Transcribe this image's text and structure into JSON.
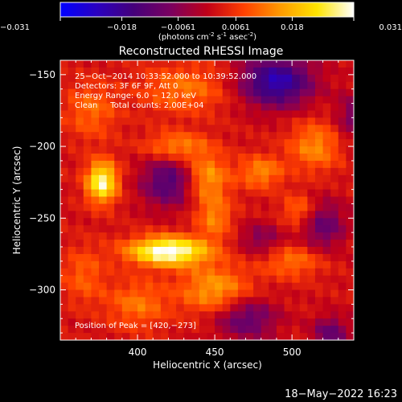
{
  "chart_data": {
    "type": "heatmap",
    "title": "Reconstructed RHESSI Image",
    "xlabel": "Heliocentric X (arcsec)",
    "ylabel": "Heliocentric Y (arcsec)",
    "xlim": [
      350,
      540
    ],
    "ylim": [
      -335,
      -140
    ],
    "x_ticks": [
      400,
      450,
      500
    ],
    "y_ticks": [
      -150,
      -200,
      -250,
      -300
    ],
    "colorbar": {
      "label_html": "(photons cm⁻² s⁻¹ asec⁻²)",
      "label_parts": [
        "(photons cm",
        "-2",
        " s",
        "-1",
        " asec",
        "-2",
        ")"
      ],
      "min": -0.031,
      "max": 0.031,
      "ticks": [
        {
          "value": -0.031,
          "label": "−0.031"
        },
        {
          "value": -0.018,
          "label": "−0.018"
        },
        {
          "value": -0.0061,
          "label": "−0.0061"
        },
        {
          "value": 0.0061,
          "label": "0.0061"
        },
        {
          "value": 0.018,
          "label": "0.018"
        },
        {
          "value": 0.031,
          "label": "0.031"
        }
      ],
      "colors": [
        "#0000ff",
        "#2a00c0",
        "#45007a",
        "#7a0060",
        "#c00018",
        "#ff4000",
        "#ff9a00",
        "#ffe400",
        "#ffffff"
      ]
    },
    "annotations": [
      "25−Oct−2014 10:33:52.000 to 10:39:52.000",
      "Detectors: 3F 6F 9F, Att 0",
      "Energy Range: 6.0 − 12.0 keV",
      "Clean     Total counts: 2.00E+04"
    ],
    "peak_label": "Position of Peak = [420,−273]",
    "peak": [
      420,
      -273
    ],
    "sources": [
      {
        "x": 420,
        "y": -273,
        "value": 0.031,
        "sx": 18,
        "sy": 7
      },
      {
        "x": 377,
        "y": -225,
        "value": 0.027,
        "sx": 7,
        "sy": 10
      },
      {
        "x": 445,
        "y": -222,
        "value": 0.014,
        "sx": 10,
        "sy": 12
      },
      {
        "x": 425,
        "y": -200,
        "value": 0.012,
        "sx": 14,
        "sy": 7
      },
      {
        "x": 450,
        "y": -250,
        "value": 0.011,
        "sx": 8,
        "sy": 10
      },
      {
        "x": 480,
        "y": -218,
        "value": 0.012,
        "sx": 10,
        "sy": 8
      },
      {
        "x": 515,
        "y": -200,
        "value": 0.012,
        "sx": 12,
        "sy": 12
      },
      {
        "x": 505,
        "y": -245,
        "value": 0.01,
        "sx": 8,
        "sy": 8
      },
      {
        "x": 450,
        "y": -300,
        "value": 0.014,
        "sx": 16,
        "sy": 12
      },
      {
        "x": 400,
        "y": -310,
        "value": 0.01,
        "sx": 14,
        "sy": 12
      },
      {
        "x": 500,
        "y": -280,
        "value": 0.01,
        "sx": 14,
        "sy": 8
      },
      {
        "x": 430,
        "y": -160,
        "value": 0.01,
        "sx": 20,
        "sy": 12
      },
      {
        "x": 370,
        "y": -175,
        "value": 0.009,
        "sx": 12,
        "sy": 14
      },
      {
        "x": 365,
        "y": -290,
        "value": 0.008,
        "sx": 10,
        "sy": 14
      },
      {
        "x": 420,
        "y": -225,
        "value": -0.016,
        "sx": 12,
        "sy": 12
      },
      {
        "x": 490,
        "y": -155,
        "value": -0.024,
        "sx": 16,
        "sy": 12
      },
      {
        "x": 520,
        "y": -255,
        "value": -0.013,
        "sx": 10,
        "sy": 12
      },
      {
        "x": 480,
        "y": -265,
        "value": -0.009,
        "sx": 10,
        "sy": 8
      },
      {
        "x": 470,
        "y": -320,
        "value": -0.014,
        "sx": 14,
        "sy": 10
      },
      {
        "x": 525,
        "y": -330,
        "value": -0.013,
        "sx": 8,
        "sy": 8
      },
      {
        "x": 540,
        "y": -180,
        "value": -0.01,
        "sx": 8,
        "sy": 12
      }
    ]
  },
  "footer": {
    "timestamp": "18−May−2022 16:23"
  }
}
